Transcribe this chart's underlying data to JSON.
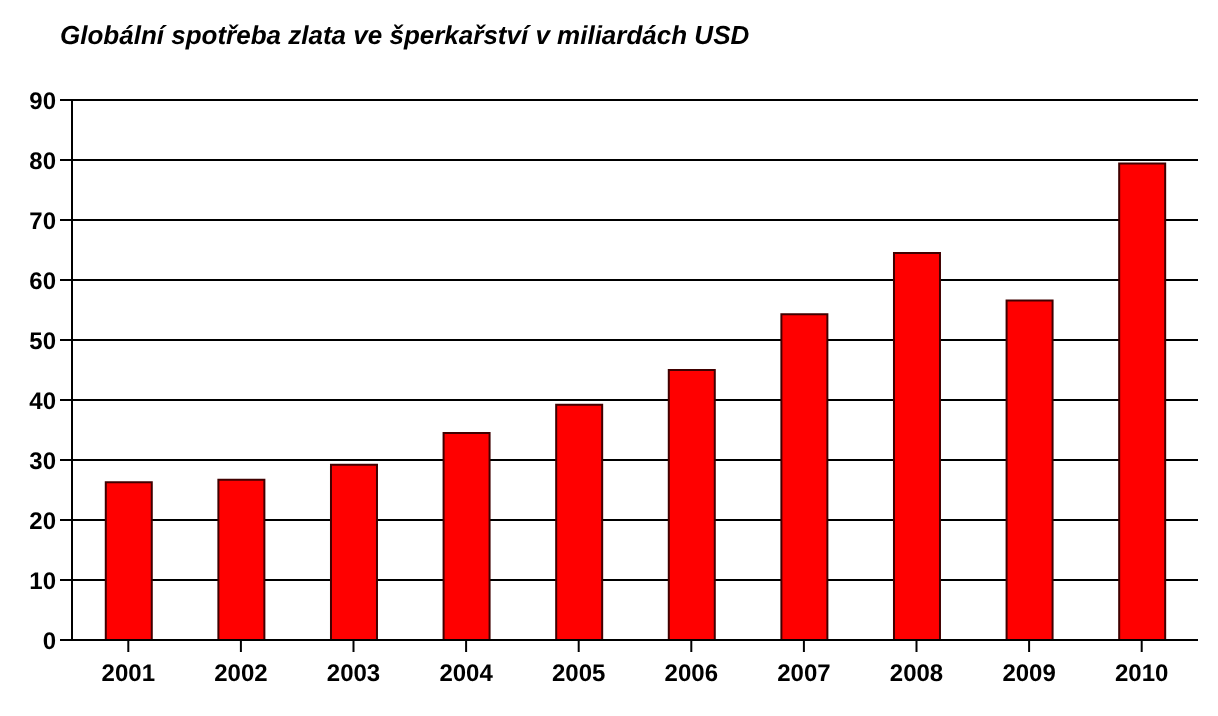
{
  "chart_data": {
    "type": "bar",
    "title": "Globální spotřeba zlata ve šperkařství v miliardách USD",
    "categories": [
      "2001",
      "2002",
      "2003",
      "2004",
      "2005",
      "2006",
      "2007",
      "2008",
      "2009",
      "2010"
    ],
    "values": [
      26.3,
      26.7,
      29.2,
      34.5,
      39.2,
      45.0,
      54.3,
      64.5,
      56.6,
      79.4
    ],
    "color": "#ff0000",
    "ylim": [
      0,
      90
    ],
    "yticks": [
      0,
      10,
      20,
      30,
      40,
      50,
      60,
      70,
      80,
      90
    ],
    "grid": "y",
    "legend": false
  }
}
